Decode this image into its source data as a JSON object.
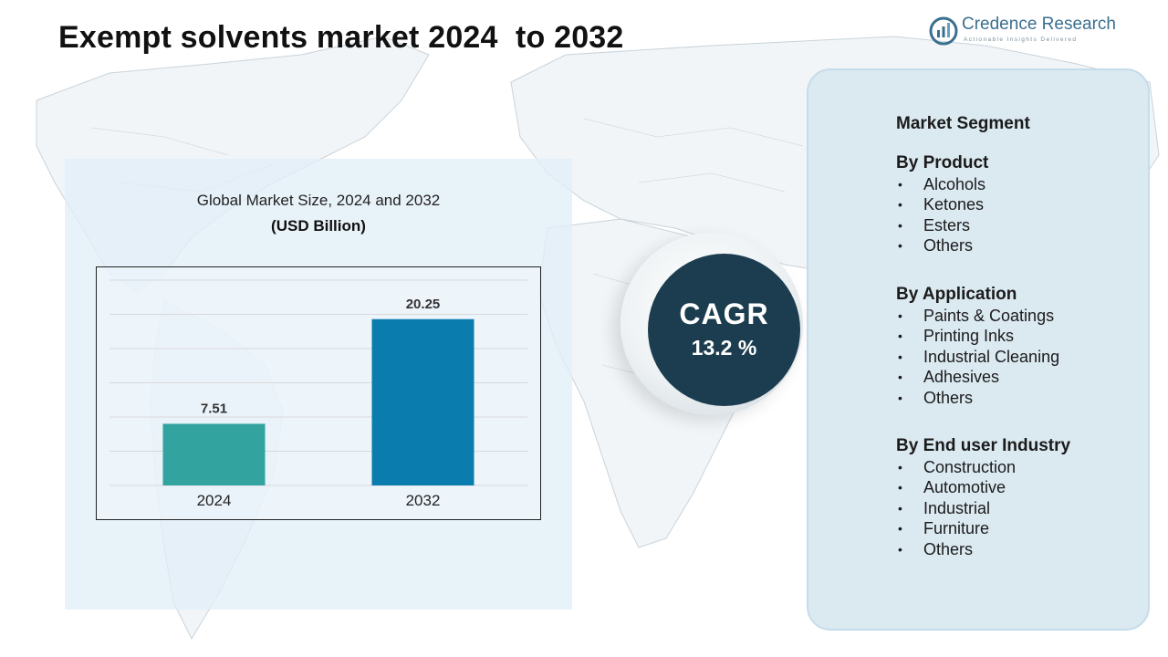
{
  "page": {
    "title": "Exempt solvents market 2024  to 2032"
  },
  "logo": {
    "name": "Credence Research",
    "tagline": "Actionable Insights Delivered",
    "icon": "credence-logo-icon"
  },
  "colors": {
    "bar_2024": "#33a3a0",
    "bar_2032": "#0a7cad",
    "cagr_circle": "#1c3d4f",
    "segment_panel": "#dbe9f1"
  },
  "chart_data": {
    "type": "bar",
    "title": "Global Market Size, 2024 and 2032",
    "subtitle": "(USD Billion)",
    "categories": [
      "2024",
      "2032"
    ],
    "values": [
      7.51,
      20.25
    ],
    "value_labels": [
      "7.51",
      "20.25"
    ],
    "ylim": [
      0,
      25
    ],
    "grid": true,
    "legend": "none"
  },
  "cagr": {
    "label": "CAGR",
    "value": "13.2 %"
  },
  "segments": {
    "heading": "Market Segment",
    "groups": [
      {
        "title": "By Product",
        "items": [
          "Alcohols",
          "Ketones",
          "Esters",
          "Others"
        ]
      },
      {
        "title": "By Application",
        "items": [
          "Paints & Coatings",
          "Printing Inks",
          "Industrial Cleaning",
          "Adhesives",
          "Others"
        ]
      },
      {
        "title": "By End user Industry",
        "items": [
          "Construction",
          "Automotive",
          "Industrial",
          "Furniture",
          "Others"
        ]
      }
    ]
  }
}
